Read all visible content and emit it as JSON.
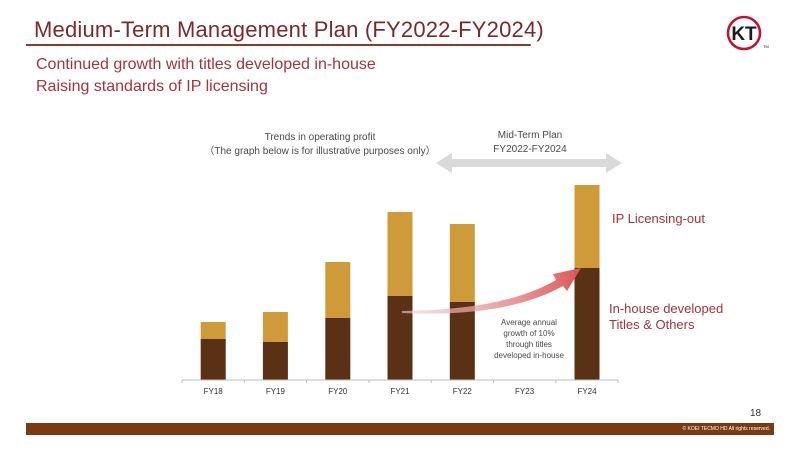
{
  "header": {
    "title": "Medium-Term Management Plan (FY2022-FY2024)",
    "logo_text": "KT",
    "logo_mark": "TM"
  },
  "subtitles": [
    "Continued growth with titles developed in-house",
    "Raising standards of IP licensing"
  ],
  "chart_data": {
    "type": "bar",
    "stacked": true,
    "title_lines": [
      "Trends in operating profit",
      "（The graph below is for illustrative purposes only）"
    ],
    "categories": [
      "FY18",
      "FY19",
      "FY20",
      "FY21",
      "FY22",
      "FY23",
      "FY24"
    ],
    "series": [
      {
        "name": "In-house developed Titles & Others",
        "label_lines": [
          "In-house developed",
          "Titles & Others"
        ],
        "color": "#5a3114",
        "values": [
          41,
          38,
          62,
          84,
          78,
          null,
          112
        ]
      },
      {
        "name": "IP Licensing-out",
        "label_lines": [
          "IP Licensing-out"
        ],
        "color": "#cf9a3a",
        "values": [
          17,
          30,
          56,
          84,
          78,
          null,
          83
        ]
      }
    ],
    "ylim": [
      0,
      200
    ],
    "grid": false,
    "plan_range": {
      "label_lines": [
        "Mid-Term Plan",
        "FY2022-FY2024"
      ],
      "from": "FY22",
      "to": "FY24"
    },
    "annotation_lines": [
      "Average annual",
      "growth of 10%",
      "through titles",
      "developed in-house"
    ]
  },
  "footer": {
    "page_number": "18",
    "copyright": "© KOEI TECMO HD All rights reserved."
  }
}
